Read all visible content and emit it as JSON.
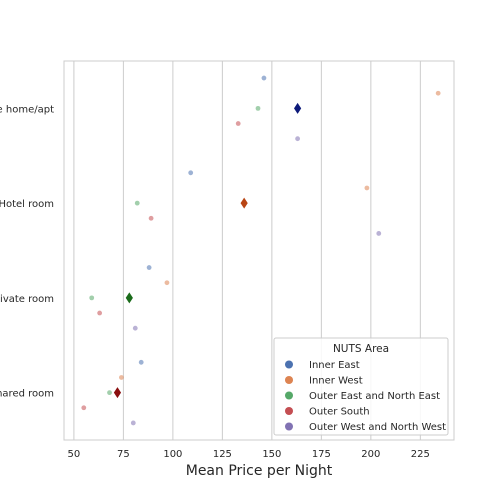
{
  "chart_data": {
    "type": "scatter",
    "subtype": "stripplot-with-mean-markers",
    "xlabel": "Mean Price per Night",
    "ylabel": "",
    "xlim": [
      45,
      242
    ],
    "xticks": [
      50,
      75,
      100,
      125,
      150,
      175,
      200,
      225
    ],
    "grid": "vertical",
    "categories": [
      "Entire home/apt",
      "Hotel room",
      "Private room",
      "Shared room"
    ],
    "legend": {
      "title": "NUTS Area",
      "position": "lower-right"
    },
    "series": [
      {
        "name": "Inner East",
        "color": "#4c72b0",
        "values": [
          146,
          109,
          88,
          84
        ]
      },
      {
        "name": "Inner West",
        "color": "#dd8452",
        "values": [
          234,
          198,
          97,
          74
        ]
      },
      {
        "name": "Outer East and North East",
        "color": "#55a868",
        "values": [
          143,
          82,
          59,
          68
        ]
      },
      {
        "name": "Outer South",
        "color": "#c44e52",
        "values": [
          133,
          89,
          63,
          55
        ]
      },
      {
        "name": "Outer West and North West",
        "color": "#8172b3",
        "values": [
          163,
          204,
          81,
          80
        ]
      }
    ],
    "means": {
      "values": [
        163,
        136,
        78,
        72
      ],
      "colors": [
        "#0d1a7a",
        "#b84514",
        "#1a6b1a",
        "#8a0f0f"
      ]
    }
  }
}
